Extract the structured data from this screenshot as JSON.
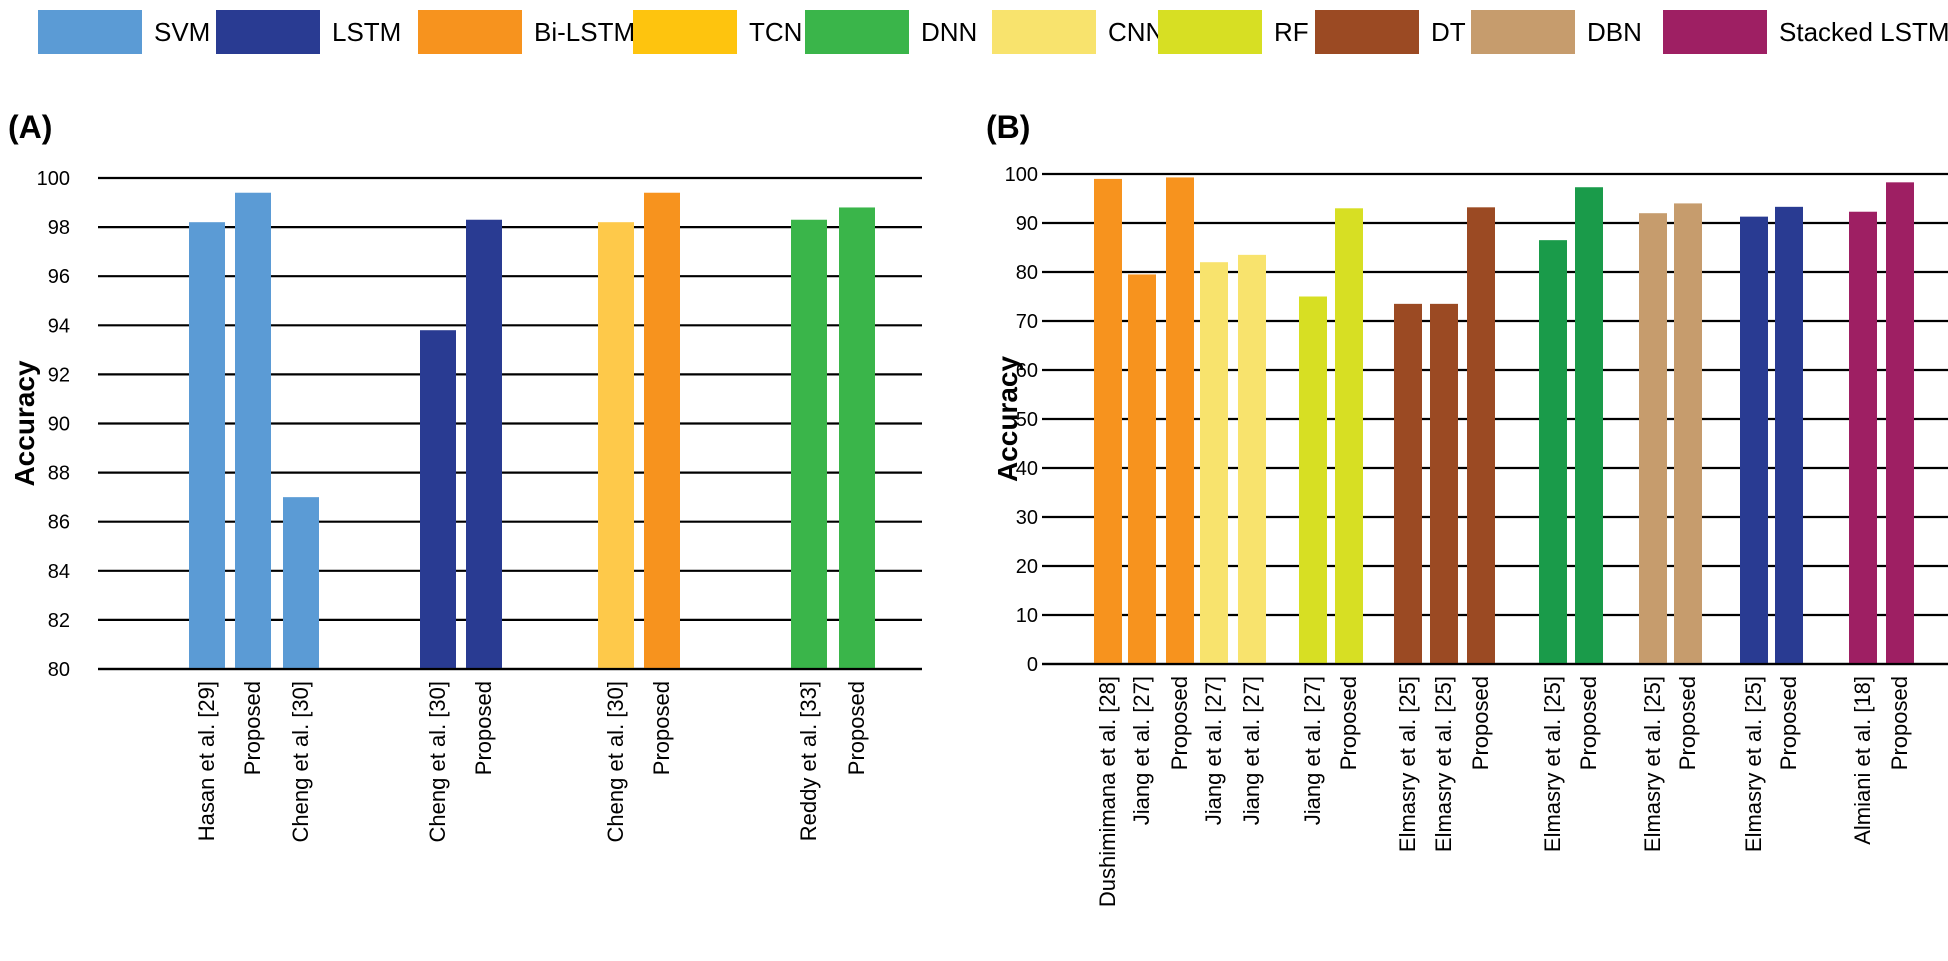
{
  "legend": [
    {
      "label": "SVM",
      "color": "#5b9bd5"
    },
    {
      "label": "LSTM",
      "color": "#293b92"
    },
    {
      "label": "Bi-LSTM",
      "color": "#f7931e"
    },
    {
      "label": "TCN",
      "color": "#fec40e"
    },
    {
      "label": "DNN",
      "color": "#3ab54a"
    },
    {
      "label": "CNN",
      "color": "#f8e36d"
    },
    {
      "label": "RF",
      "color": "#d7df23"
    },
    {
      "label": "DT",
      "color": "#9b4a23"
    },
    {
      "label": "DBN",
      "color": "#c69c6d"
    },
    {
      "label": "Stacked LSTM",
      "color": "#9e1f63"
    }
  ],
  "chart_data": [
    {
      "type": "bar",
      "panel_label": "(A)",
      "ylabel": "Accuracy",
      "ylim": [
        80,
        100
      ],
      "yticks": [
        80,
        82,
        84,
        86,
        88,
        90,
        92,
        94,
        96,
        98,
        100
      ],
      "grid": true,
      "bars": [
        {
          "label": "Hasan et al. [29]",
          "value": 98.2,
          "color": "#5b9bd5",
          "group": 0
        },
        {
          "label": "Proposed",
          "value": 99.4,
          "color": "#5b9bd5",
          "group": 0
        },
        {
          "label": "Cheng et al. [30]",
          "value": 87.0,
          "color": "#5b9bd5",
          "group": 0
        },
        {
          "label": "Cheng et al. [30]",
          "value": 93.8,
          "color": "#293b92",
          "group": 1
        },
        {
          "label": "Proposed",
          "value": 98.3,
          "color": "#293b92",
          "group": 1
        },
        {
          "label": "Cheng et al. [30]",
          "value": 98.2,
          "color": "#fec94a",
          "group": 2
        },
        {
          "label": "Proposed",
          "value": 99.4,
          "color": "#f7931e",
          "group": 2
        },
        {
          "label": "Reddy et al. [33]",
          "value": 98.3,
          "color": "#3ab54a",
          "group": 3
        },
        {
          "label": "Proposed",
          "value": 98.8,
          "color": "#3ab54a",
          "group": 3
        }
      ]
    },
    {
      "type": "bar",
      "panel_label": "(B)",
      "ylabel": "Accuracy",
      "ylim": [
        0,
        100
      ],
      "yticks": [
        0,
        10,
        20,
        30,
        40,
        50,
        60,
        70,
        80,
        90,
        100
      ],
      "grid": true,
      "bars": [
        {
          "label": "Dushimimana et al. [28]",
          "value": 99.0,
          "color": "#f7931e",
          "group": 0
        },
        {
          "label": "Jiang et al. [27]",
          "value": 79.5,
          "color": "#f7931e",
          "group": 0
        },
        {
          "label": "Proposed",
          "value": 99.3,
          "color": "#f7931e",
          "group": 0
        },
        {
          "label": "Jiang et al. [27]",
          "value": 82.0,
          "color": "#f8e36d",
          "group": 1
        },
        {
          "label": "Jiang et al. [27]",
          "value": 83.5,
          "color": "#f8e36d",
          "group": 1
        },
        {
          "label": "Jiang et al. [27]",
          "value": 75.0,
          "color": "#d7df23",
          "group": 2
        },
        {
          "label": "Proposed",
          "value": 93.0,
          "color": "#d7df23",
          "group": 2
        },
        {
          "label": "Elmasry et al. [25]",
          "value": 73.5,
          "color": "#9b4a23",
          "group": 3
        },
        {
          "label": "Elmasry et al. [25]",
          "value": 73.5,
          "color": "#9b4a23",
          "group": 3
        },
        {
          "label": "Proposed",
          "value": 93.2,
          "color": "#9b4a23",
          "group": 3
        },
        {
          "label": "Elmasry et al. [25]",
          "value": 86.5,
          "color": "#1a9b4a",
          "group": 4
        },
        {
          "label": "Proposed",
          "value": 97.3,
          "color": "#1a9b4a",
          "group": 4
        },
        {
          "label": "Elmasry et al. [25]",
          "value": 92.0,
          "color": "#c69c6d",
          "group": 5
        },
        {
          "label": "Proposed",
          "value": 94.0,
          "color": "#c69c6d",
          "group": 5
        },
        {
          "label": "Elmasry et al. [25]",
          "value": 91.3,
          "color": "#293b92",
          "group": 6
        },
        {
          "label": "Proposed",
          "value": 93.3,
          "color": "#293b92",
          "group": 6
        },
        {
          "label": "Almiani et al. [18]",
          "value": 92.3,
          "color": "#9e1f63",
          "group": 7
        },
        {
          "label": "Proposed",
          "value": 98.3,
          "color": "#9e1f63",
          "group": 7
        }
      ]
    }
  ]
}
